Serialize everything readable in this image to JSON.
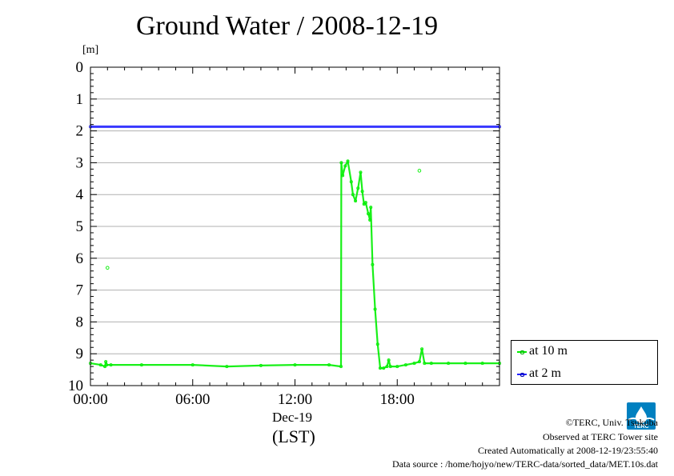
{
  "chart_data": {
    "type": "line",
    "title": "Ground Water / 2008-12-19",
    "ylabel": "[m]",
    "y_inverted": true,
    "ylim": [
      0,
      10
    ],
    "yticks": [
      "0",
      "1",
      "2",
      "3",
      "4",
      "5",
      "6",
      "7",
      "8",
      "9",
      "10"
    ],
    "xlim": [
      0,
      24
    ],
    "xticks": [
      {
        "value": 0,
        "label": "00:00"
      },
      {
        "value": 6,
        "label": "06:00"
      },
      {
        "value": 12,
        "label": "12:00"
      },
      {
        "value": 18,
        "label": "18:00"
      }
    ],
    "xsublabel": "Dec-19",
    "xlabel": "(LST)",
    "grid": true,
    "legend_position": "bottom-right-outside",
    "series": [
      {
        "name": "at 10 m",
        "color": "#00ee00",
        "x": [
          0,
          0.6,
          0.85,
          0.9,
          0.95,
          1.2,
          3,
          6,
          8,
          10,
          12,
          14,
          14.7,
          14.72,
          14.8,
          14.95,
          15.1,
          15.3,
          15.4,
          15.55,
          15.7,
          15.85,
          15.95,
          16.05,
          16.15,
          16.3,
          16.4,
          16.45,
          16.55,
          16.7,
          16.85,
          17.0,
          17.2,
          17.4,
          17.5,
          17.6,
          18.0,
          18.5,
          19.0,
          19.3,
          19.45,
          19.6,
          20,
          21,
          22,
          23,
          24
        ],
        "y": [
          9.3,
          9.35,
          9.4,
          9.25,
          9.35,
          9.35,
          9.35,
          9.35,
          9.4,
          9.37,
          9.35,
          9.35,
          9.4,
          3.0,
          3.4,
          3.1,
          2.95,
          3.6,
          4.0,
          4.2,
          3.8,
          3.3,
          3.9,
          4.3,
          4.25,
          4.6,
          4.8,
          4.4,
          6.2,
          7.6,
          8.7,
          9.45,
          9.45,
          9.4,
          9.2,
          9.4,
          9.4,
          9.35,
          9.3,
          9.25,
          8.85,
          9.3,
          9.3,
          9.3,
          9.3,
          9.3,
          9.3
        ],
        "scatter": [
          [
            1.0,
            6.3
          ],
          [
            19.3,
            3.25
          ]
        ]
      },
      {
        "name": "at 2 m",
        "color": "#2222ff",
        "x": [
          0,
          24
        ],
        "y": [
          1.87,
          1.87
        ]
      }
    ]
  },
  "footer": {
    "copyright": "©TERC, Univ. Tsukuba",
    "observed": "Observed at TERC Tower site",
    "created": "Created Automatically at 2008-12-19/23:55:40",
    "source": "Data source : /home/hojyo/new/TERC-data/sorted_data/MET.10s.dat"
  },
  "logo": {
    "text": "TERC",
    "color": "#0080c0"
  }
}
